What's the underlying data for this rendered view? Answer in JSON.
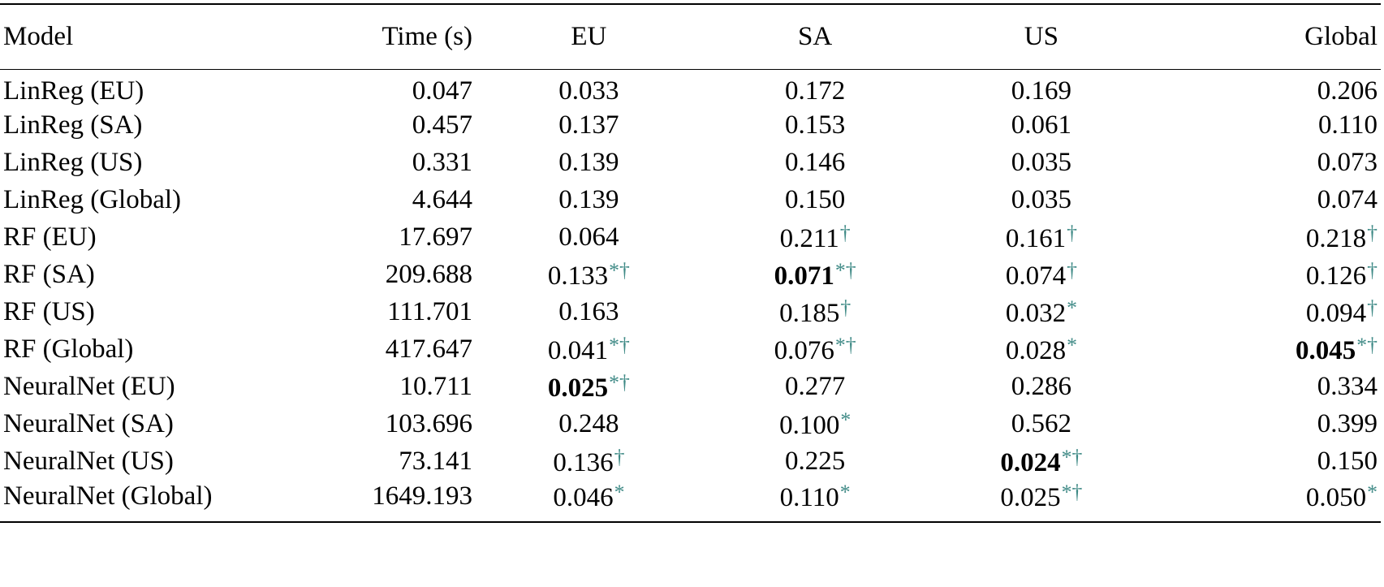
{
  "headers": [
    "Model",
    "Time (s)",
    "EU",
    "SA",
    "US",
    "Global"
  ],
  "rows": [
    {
      "model": "LinReg (EU)",
      "time": "0.047",
      "cells": [
        {
          "v": "0.033",
          "b": false,
          "m": ""
        },
        {
          "v": "0.172",
          "b": false,
          "m": ""
        },
        {
          "v": "0.169",
          "b": false,
          "m": ""
        },
        {
          "v": "0.206",
          "b": false,
          "m": ""
        }
      ]
    },
    {
      "model": "LinReg (SA)",
      "time": "0.457",
      "cells": [
        {
          "v": "0.137",
          "b": false,
          "m": ""
        },
        {
          "v": "0.153",
          "b": false,
          "m": ""
        },
        {
          "v": "0.061",
          "b": false,
          "m": ""
        },
        {
          "v": "0.110",
          "b": false,
          "m": ""
        }
      ]
    },
    {
      "model": "LinReg (US)",
      "time": "0.331",
      "cells": [
        {
          "v": "0.139",
          "b": false,
          "m": ""
        },
        {
          "v": "0.146",
          "b": false,
          "m": ""
        },
        {
          "v": "0.035",
          "b": false,
          "m": ""
        },
        {
          "v": "0.073",
          "b": false,
          "m": ""
        }
      ]
    },
    {
      "model": "LinReg (Global)",
      "time": "4.644",
      "cells": [
        {
          "v": "0.139",
          "b": false,
          "m": ""
        },
        {
          "v": "0.150",
          "b": false,
          "m": ""
        },
        {
          "v": "0.035",
          "b": false,
          "m": ""
        },
        {
          "v": "0.074",
          "b": false,
          "m": ""
        }
      ]
    },
    {
      "model": "RF (EU)",
      "time": "17.697",
      "cells": [
        {
          "v": "0.064",
          "b": false,
          "m": ""
        },
        {
          "v": "0.211",
          "b": false,
          "m": "†"
        },
        {
          "v": "0.161",
          "b": false,
          "m": "†"
        },
        {
          "v": "0.218",
          "b": false,
          "m": "†"
        }
      ]
    },
    {
      "model": "RF (SA)",
      "time": "209.688",
      "cells": [
        {
          "v": "0.133",
          "b": false,
          "m": "*†"
        },
        {
          "v": "0.071",
          "b": true,
          "m": "*†"
        },
        {
          "v": "0.074",
          "b": false,
          "m": "†"
        },
        {
          "v": "0.126",
          "b": false,
          "m": "†"
        }
      ]
    },
    {
      "model": "RF (US)",
      "time": "111.701",
      "cells": [
        {
          "v": "0.163",
          "b": false,
          "m": ""
        },
        {
          "v": "0.185",
          "b": false,
          "m": "†"
        },
        {
          "v": "0.032",
          "b": false,
          "m": "*"
        },
        {
          "v": "0.094",
          "b": false,
          "m": "†"
        }
      ]
    },
    {
      "model": "RF (Global)",
      "time": "417.647",
      "cells": [
        {
          "v": "0.041",
          "b": false,
          "m": "*†"
        },
        {
          "v": "0.076",
          "b": false,
          "m": "*†"
        },
        {
          "v": "0.028",
          "b": false,
          "m": "*"
        },
        {
          "v": "0.045",
          "b": true,
          "m": "*†"
        }
      ]
    },
    {
      "model": "NeuralNet (EU)",
      "time": "10.711",
      "cells": [
        {
          "v": "0.025",
          "b": true,
          "m": "*†"
        },
        {
          "v": "0.277",
          "b": false,
          "m": ""
        },
        {
          "v": "0.286",
          "b": false,
          "m": ""
        },
        {
          "v": "0.334",
          "b": false,
          "m": ""
        }
      ]
    },
    {
      "model": "NeuralNet (SA)",
      "time": "103.696",
      "cells": [
        {
          "v": "0.248",
          "b": false,
          "m": ""
        },
        {
          "v": "0.100",
          "b": false,
          "m": "*"
        },
        {
          "v": "0.562",
          "b": false,
          "m": ""
        },
        {
          "v": "0.399",
          "b": false,
          "m": ""
        }
      ]
    },
    {
      "model": "NeuralNet (US)",
      "time": "73.141",
      "cells": [
        {
          "v": "0.136",
          "b": false,
          "m": "†"
        },
        {
          "v": "0.225",
          "b": false,
          "m": ""
        },
        {
          "v": "0.024",
          "b": true,
          "m": "*†"
        },
        {
          "v": "0.150",
          "b": false,
          "m": ""
        }
      ]
    },
    {
      "model": "NeuralNet (Global)",
      "time": "1649.193",
      "cells": [
        {
          "v": "0.046",
          "b": false,
          "m": "*"
        },
        {
          "v": "0.110",
          "b": false,
          "m": "*"
        },
        {
          "v": "0.025",
          "b": false,
          "m": "*†"
        },
        {
          "v": "0.050",
          "b": false,
          "m": "*"
        }
      ]
    }
  ],
  "colors": {
    "marker": "#3f8a86",
    "text": "#000000"
  }
}
